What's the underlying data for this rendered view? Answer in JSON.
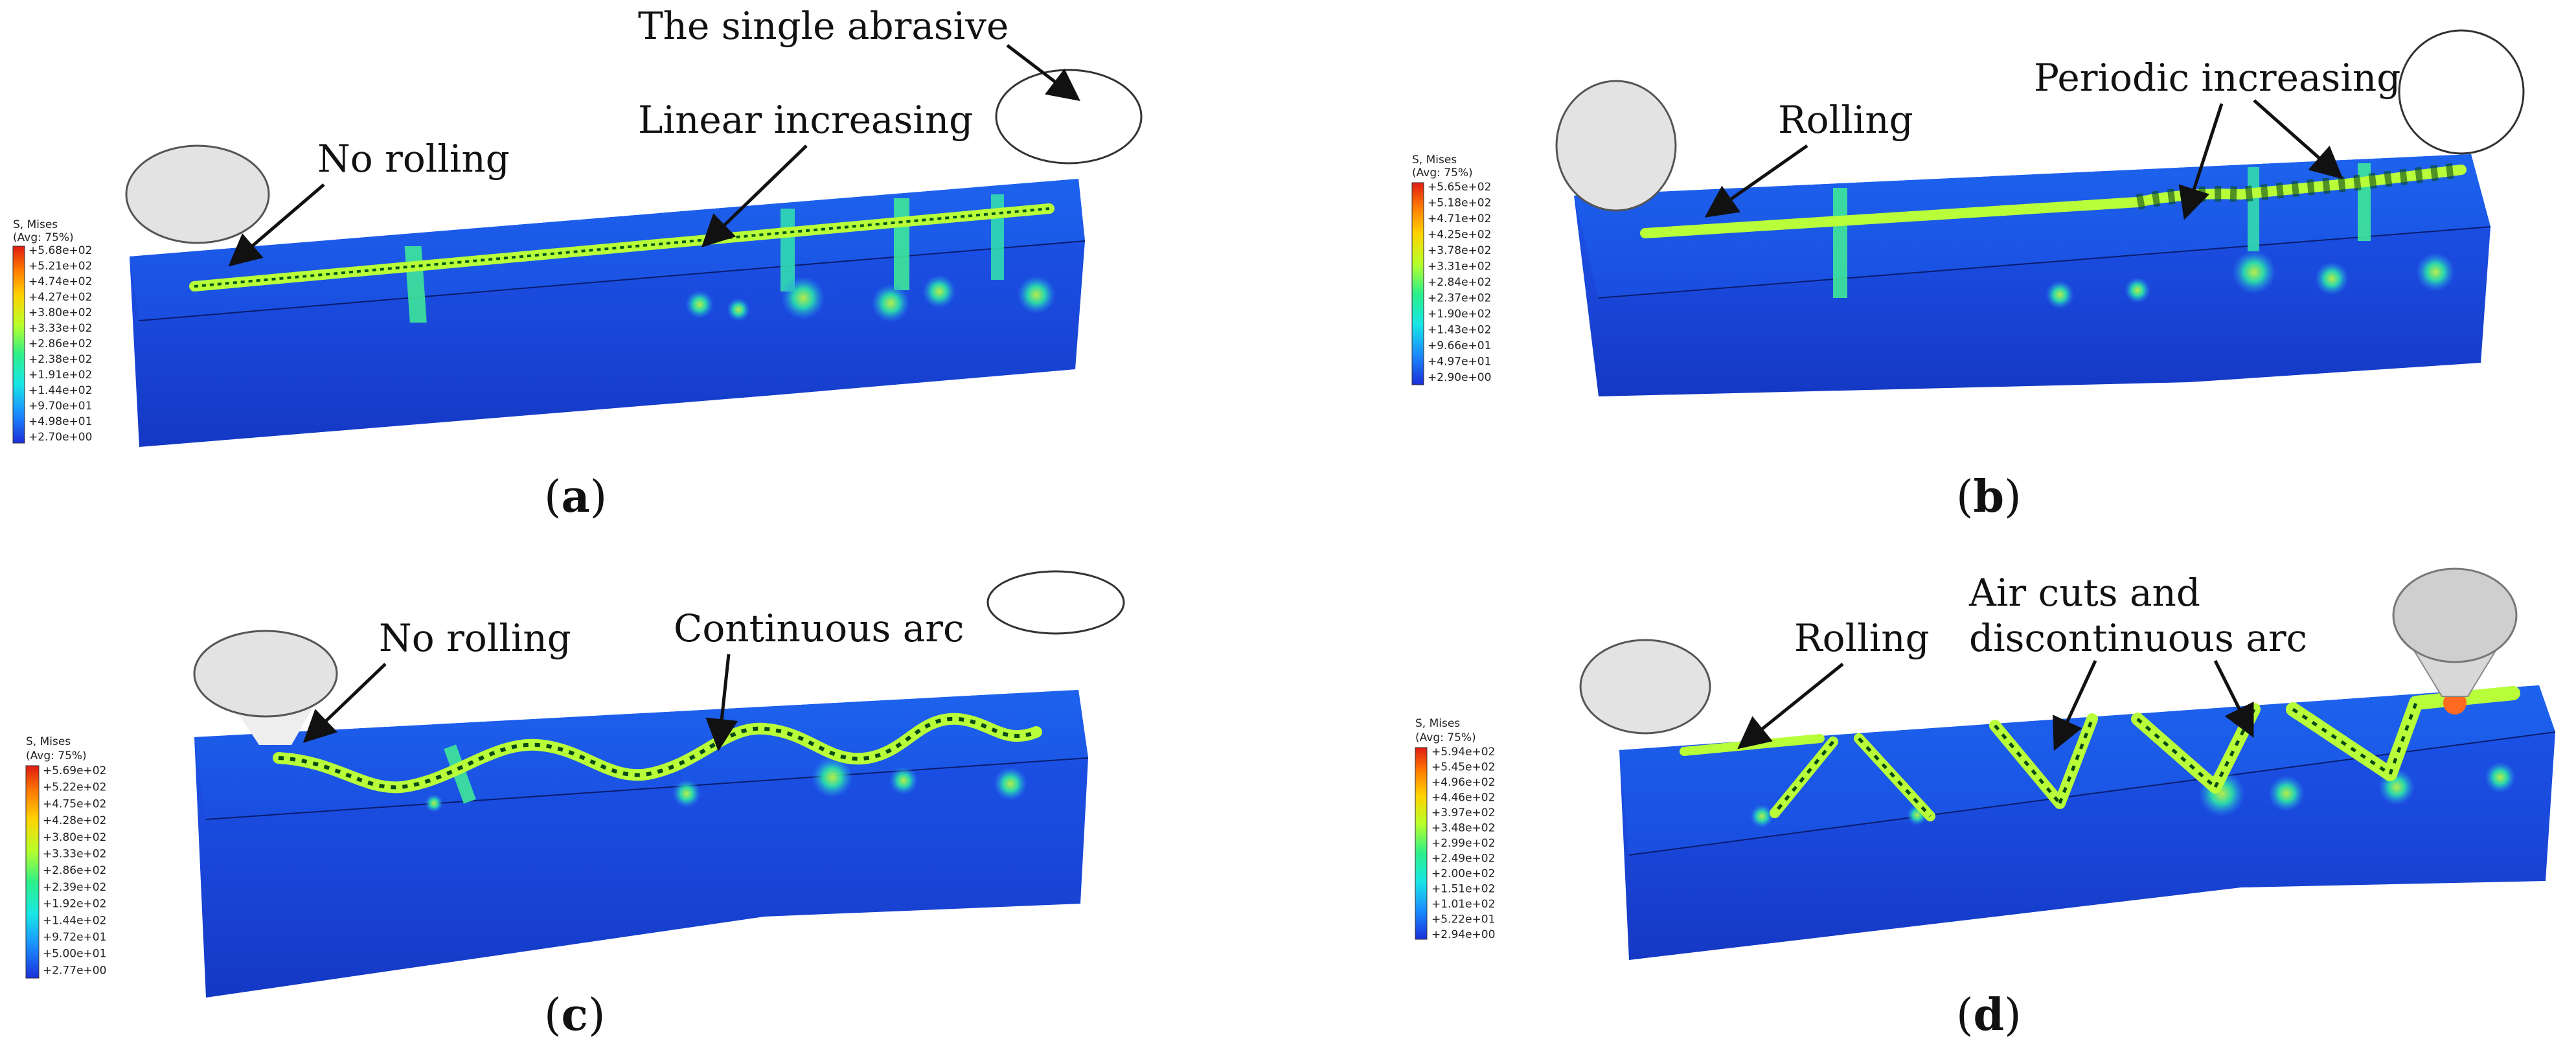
{
  "panels": [
    {
      "id": "a",
      "caption": "a",
      "annotations": [
        "The single abrasive",
        "No rolling",
        "Linear increasing"
      ],
      "legend": {
        "title": "S, Mises",
        "subtitle": "(Avg: 75%)",
        "values": [
          "+5.68e+02",
          "+5.21e+02",
          "+4.74e+02",
          "+4.27e+02",
          "+3.80e+02",
          "+3.33e+02",
          "+2.86e+02",
          "+2.38e+02",
          "+1.91e+02",
          "+1.44e+02",
          "+9.70e+01",
          "+4.98e+01",
          "+2.70e+00"
        ]
      }
    },
    {
      "id": "b",
      "caption": "b",
      "annotations": [
        "Rolling",
        "Periodic increasing"
      ],
      "legend": {
        "title": "S, Mises",
        "subtitle": "(Avg: 75%)",
        "values": [
          "+5.65e+02",
          "+5.18e+02",
          "+4.71e+02",
          "+4.25e+02",
          "+3.78e+02",
          "+3.31e+02",
          "+2.84e+02",
          "+2.37e+02",
          "+1.90e+02",
          "+1.43e+02",
          "+9.66e+01",
          "+4.97e+01",
          "+2.90e+00"
        ]
      }
    },
    {
      "id": "c",
      "caption": "c",
      "annotations": [
        "No rolling",
        "Continuous arc"
      ],
      "legend": {
        "title": "S, Mises",
        "subtitle": "(Avg: 75%)",
        "values": [
          "+5.69e+02",
          "+5.22e+02",
          "+4.75e+02",
          "+4.28e+02",
          "+3.80e+02",
          "+3.33e+02",
          "+2.86e+02",
          "+2.39e+02",
          "+1.92e+02",
          "+1.44e+02",
          "+9.72e+01",
          "+5.00e+01",
          "+2.77e+00"
        ]
      }
    },
    {
      "id": "d",
      "caption": "d",
      "annotations": [
        "Rolling",
        "Air cuts and",
        "discontinuous arc"
      ],
      "legend": {
        "title": "S, Mises",
        "subtitle": "(Avg: 75%)",
        "values": [
          "+5.94e+02",
          "+5.45e+02",
          "+4.96e+02",
          "+4.46e+02",
          "+3.97e+02",
          "+3.48e+02",
          "+2.99e+02",
          "+2.49e+02",
          "+2.00e+02",
          "+1.51e+02",
          "+1.01e+02",
          "+5.22e+01",
          "+2.94e+00"
        ]
      }
    }
  ],
  "colors": {
    "bg": "#ffffff",
    "block": "#1646d8",
    "blockDark": "#0b2ea8",
    "stressLow": "#2a8cff",
    "stressMid": "#2be6a8",
    "stressHigh": "#b8ff3a",
    "stressPeak": "#ff2a10",
    "abrasive": "#e3e3e3"
  },
  "icons": {
    "arrow": "arrow-icon",
    "abrasive": "abrasive-ellipse-icon"
  }
}
